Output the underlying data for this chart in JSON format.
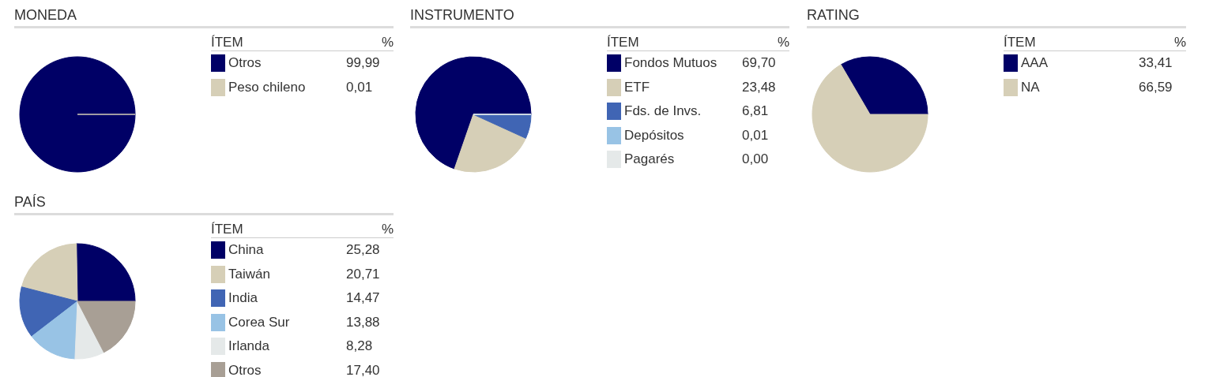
{
  "chart_data": [
    {
      "type": "pie",
      "title": "MONEDA",
      "legend_title": "ÍTEM",
      "annotations": [
        "%"
      ],
      "legend": "right",
      "categories": [
        "Otros",
        "Peso chileno"
      ],
      "values": [
        99.99,
        0.01
      ],
      "value_labels": [
        "99,99",
        "0,01"
      ],
      "colors": [
        "#000066",
        "#d6cfb7"
      ]
    },
    {
      "type": "pie",
      "title": "INSTRUMENTO",
      "legend_title": "ÍTEM",
      "annotations": [
        "%"
      ],
      "legend": "right",
      "categories": [
        "Fondos Mutuos",
        "ETF",
        "Fds. de Invs.",
        "Depósitos",
        "Pagarés"
      ],
      "values": [
        69.7,
        23.48,
        6.81,
        0.01,
        0.0
      ],
      "value_labels": [
        "69,70",
        "23,48",
        "6,81",
        "0,01",
        "0,00"
      ],
      "colors": [
        "#000066",
        "#d6cfb7",
        "#4065b4",
        "#98c3e5",
        "#e5e9e9"
      ]
    },
    {
      "type": "pie",
      "title": "RATING",
      "legend_title": "ÍTEM",
      "annotations": [
        "%"
      ],
      "legend": "right",
      "categories": [
        "AAA",
        "NA"
      ],
      "values": [
        33.41,
        66.59
      ],
      "value_labels": [
        "33,41",
        "66,59"
      ],
      "colors": [
        "#000066",
        "#d6cfb7"
      ]
    },
    {
      "type": "pie",
      "title": "PAÍS",
      "legend_title": "ÍTEM",
      "annotations": [
        "%"
      ],
      "legend": "right",
      "categories": [
        "China",
        "Taiwán",
        "India",
        "Corea Sur",
        "Irlanda",
        "Otros"
      ],
      "values": [
        25.28,
        20.71,
        14.47,
        13.88,
        8.28,
        17.4
      ],
      "value_labels": [
        "25,28",
        "20,71",
        "14,47",
        "13,88",
        "8,28",
        "17,40"
      ],
      "colors": [
        "#000066",
        "#d6cfb7",
        "#4065b4",
        "#98c3e5",
        "#e5e9e9",
        "#a89f95"
      ]
    }
  ]
}
